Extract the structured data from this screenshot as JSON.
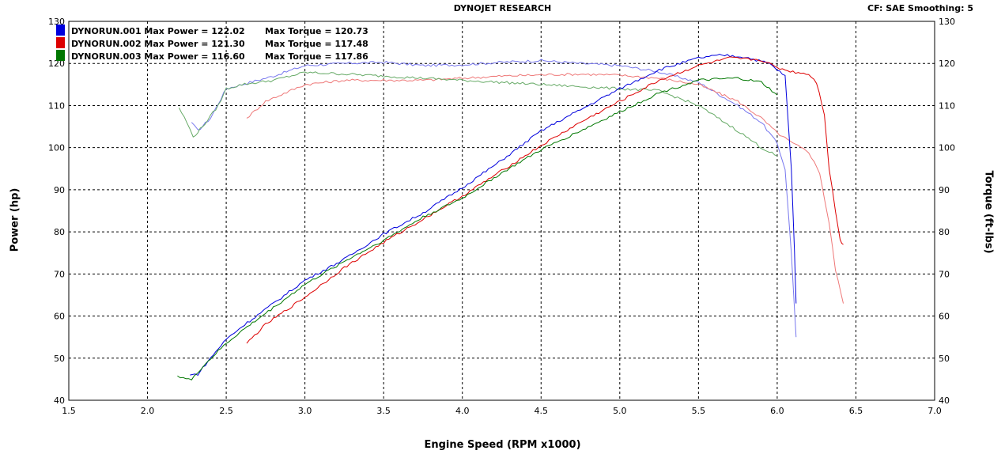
{
  "header": {
    "title": "DYNOJET RESEARCH",
    "cf": "CF: SAE  Smoothing: 5"
  },
  "colors": {
    "blue": "#0000dd",
    "red": "#dd0000",
    "green": "#007700",
    "blue_light": "#7777ee",
    "red_light": "#ee7777",
    "green_light": "#66aa66",
    "grid": "#000000"
  },
  "chart_data": {
    "type": "line",
    "xlabel": "Engine Speed (RPM x1000)",
    "ylabel": "Power (hp)",
    "ylabel2": "Torque (ft-lbs)",
    "xlim": [
      1.5,
      7.0
    ],
    "ylim": [
      40,
      130
    ],
    "ylim2": [
      40,
      130
    ],
    "xticks": [
      "1.5",
      "2.0",
      "2.5",
      "3.0",
      "3.5",
      "4.0",
      "4.5",
      "5.0",
      "5.5",
      "6.0",
      "6.5",
      "7.0"
    ],
    "yticks": [
      "40",
      "50",
      "60",
      "70",
      "80",
      "90",
      "100",
      "110",
      "120",
      "130"
    ],
    "grid": true,
    "legend_position": "top-left",
    "legend": [
      {
        "run": "DYNORUN.001",
        "power_label": "Max Power =",
        "power": "122.02",
        "torque_label": "Max Torque =",
        "torque": "120.73",
        "color": "#0000dd"
      },
      {
        "run": "DYNORUN.002",
        "power_label": "Max Power =",
        "power": "121.30",
        "torque_label": "Max Torque =",
        "torque": "117.48",
        "color": "#dd0000"
      },
      {
        "run": "DYNORUN.003",
        "power_label": "Max Power =",
        "power": "116.60",
        "torque_label": "Max Torque =",
        "torque": "117.86",
        "color": "#007700"
      }
    ],
    "series": [
      {
        "run": "DYNORUN.001",
        "quantity": "power",
        "color": "#0000dd",
        "x": [
          2.27,
          2.32,
          2.4,
          2.5,
          2.6,
          2.8,
          3.0,
          3.25,
          3.5,
          3.75,
          4.0,
          4.25,
          4.5,
          4.75,
          5.0,
          5.25,
          5.5,
          5.65,
          5.8,
          5.95,
          6.05,
          6.09,
          6.11,
          6.12
        ],
        "y": [
          46,
          46.2,
          50,
          54.5,
          57.5,
          63,
          68.5,
          73.5,
          79.5,
          84.5,
          90.5,
          97,
          104,
          109,
          114,
          118.5,
          121.3,
          122,
          121.5,
          120,
          117,
          95,
          75,
          63
        ]
      },
      {
        "run": "DYNORUN.001",
        "quantity": "torque",
        "color": "#7777ee",
        "x": [
          2.28,
          2.32,
          2.4,
          2.5,
          2.6,
          2.8,
          3.0,
          3.25,
          3.5,
          3.75,
          4.0,
          4.25,
          4.5,
          4.75,
          5.0,
          5.25,
          5.5,
          5.75,
          5.9,
          6.0,
          6.05,
          6.09,
          6.12
        ],
        "y": [
          106,
          104,
          107,
          114,
          115,
          117,
          119.5,
          120,
          120.3,
          119.5,
          119.7,
          120.3,
          120.7,
          120,
          119.5,
          118,
          115.5,
          110,
          106,
          101,
          95,
          75,
          55
        ]
      },
      {
        "run": "DYNORUN.002",
        "quantity": "power",
        "color": "#dd0000",
        "x": [
          2.63,
          2.75,
          3.0,
          3.25,
          3.5,
          3.75,
          4.0,
          4.25,
          4.5,
          4.75,
          5.0,
          5.25,
          5.5,
          5.7,
          5.9,
          6.0,
          6.1,
          6.2,
          6.25,
          6.3,
          6.33,
          6.37,
          6.4,
          6.42
        ],
        "y": [
          53.5,
          58,
          64.5,
          71.5,
          77.5,
          83,
          88.5,
          94.5,
          100.5,
          106,
          111,
          116,
          119.5,
          121.3,
          120.8,
          119,
          118,
          117.5,
          115.5,
          108,
          95,
          85,
          78,
          77
        ]
      },
      {
        "run": "DYNORUN.002",
        "quantity": "torque",
        "color": "#ee7777",
        "x": [
          2.63,
          2.75,
          3.0,
          3.25,
          3.5,
          3.75,
          4.0,
          4.25,
          4.5,
          4.75,
          5.0,
          5.25,
          5.5,
          5.75,
          5.9,
          6.0,
          6.1,
          6.2,
          6.27,
          6.33,
          6.37,
          6.42
        ],
        "y": [
          107,
          111,
          115,
          116,
          116,
          116,
          116.5,
          117,
          117.3,
          117.48,
          117.2,
          116.5,
          115,
          111,
          107,
          103.5,
          101,
          99,
          94,
          82,
          71,
          63
        ]
      },
      {
        "run": "DYNORUN.003",
        "quantity": "power",
        "color": "#007700",
        "x": [
          2.19,
          2.28,
          2.35,
          2.5,
          2.6,
          2.8,
          3.0,
          3.25,
          3.5,
          3.75,
          4.0,
          4.25,
          4.5,
          4.75,
          5.0,
          5.25,
          5.5,
          5.75,
          5.9,
          6.0
        ],
        "y": [
          45.8,
          44.8,
          48,
          53.5,
          56.5,
          62,
          67.5,
          73,
          78,
          83.5,
          88,
          94,
          99.5,
          104,
          108.5,
          113,
          116,
          116.5,
          115.5,
          112.5
        ]
      },
      {
        "run": "DYNORUN.003",
        "quantity": "torque",
        "color": "#66aa66",
        "x": [
          2.2,
          2.25,
          2.29,
          2.35,
          2.45,
          2.5,
          2.6,
          2.8,
          3.0,
          3.25,
          3.5,
          3.75,
          4.0,
          4.25,
          4.5,
          4.75,
          5.0,
          5.25,
          5.5,
          5.75,
          5.9,
          6.0
        ],
        "y": [
          109.5,
          106,
          102.5,
          105,
          110,
          114,
          115,
          116,
          117.86,
          117.5,
          117,
          116.5,
          116,
          115.5,
          115,
          114.5,
          114,
          113.5,
          110,
          104,
          100,
          98
        ]
      }
    ]
  }
}
